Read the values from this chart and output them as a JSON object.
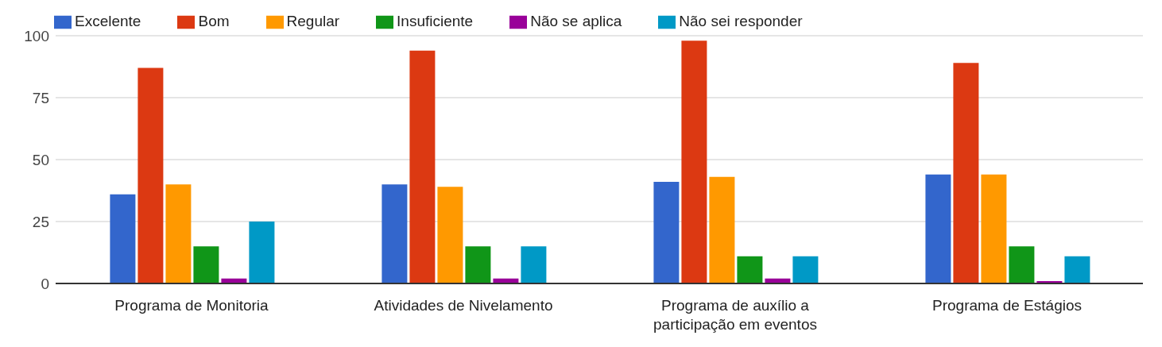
{
  "chart_data": {
    "type": "bar",
    "categories": [
      "Programa de Monitoria",
      "Atividades de Nivelamento",
      "Programa de auxílio a participação em eventos",
      "Programa de Estágios"
    ],
    "series": [
      {
        "name": "Excelente",
        "color": "#3366cc",
        "values": [
          36,
          40,
          41,
          44
        ]
      },
      {
        "name": "Bom",
        "color": "#dc3912",
        "values": [
          87,
          94,
          98,
          89
        ]
      },
      {
        "name": "Regular",
        "color": "#ff9900",
        "values": [
          40,
          39,
          43,
          44
        ]
      },
      {
        "name": "Insuficiente",
        "color": "#109618",
        "values": [
          15,
          15,
          11,
          15
        ]
      },
      {
        "name": "Não se aplica",
        "color": "#990099",
        "values": [
          2,
          2,
          2,
          1
        ]
      },
      {
        "name": "Não sei responder",
        "color": "#0099c6",
        "values": [
          25,
          15,
          11,
          11
        ]
      }
    ],
    "ylim": [
      0,
      100
    ],
    "yticks": [
      0,
      25,
      50,
      75,
      100
    ],
    "grid": "y",
    "legend": "top left"
  }
}
